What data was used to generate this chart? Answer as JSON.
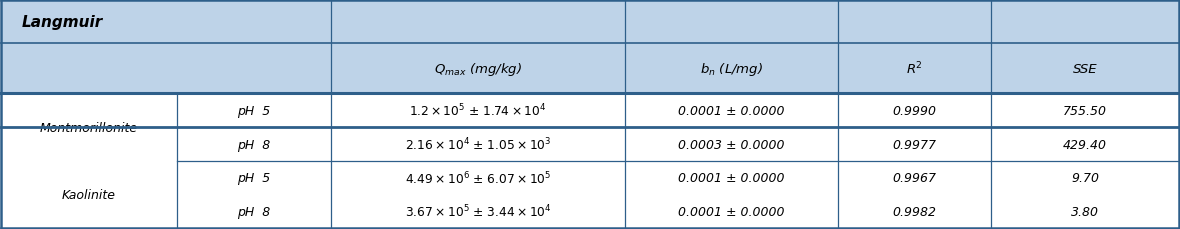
{
  "title": "Langmuir",
  "header_bg": "#bed3e8",
  "row_bg": "#ffffff",
  "dark_border": "#2e5f8a",
  "col_headers": [
    "$Q_{max}$ (mg/kg)",
    "$b_n$ (L/mg)",
    "R$^2$",
    "SSE"
  ],
  "rows": [
    {
      "mineral": "Montmorillonite",
      "pH": "pH  5",
      "Qmax": "$1.2\\times10^{5}$ ± $1.74\\times10^{4}$",
      "bn": "0.0001 ± 0.0000",
      "R2": "0.9990",
      "SSE": "755.50"
    },
    {
      "mineral": "Montmorillonite",
      "pH": "pH  8",
      "Qmax": "$2.16\\times10^{4}$ ± $1.05\\times10^{3}$",
      "bn": "0.0003 ± 0.0000",
      "R2": "0.9977",
      "SSE": "429.40"
    },
    {
      "mineral": "Kaolinite",
      "pH": "pH  5",
      "Qmax": "$4.49\\times10^{6}$ ± $6.07\\times10^{5}$",
      "bn": "0.0001 ± 0.0000",
      "R2": "0.9967",
      "SSE": "9.70"
    },
    {
      "mineral": "Kaolinite",
      "pH": "pH  8",
      "Qmax": "$3.67\\times10^{5}$ ± $3.44\\times10^{4}$",
      "bn": "0.0001 ± 0.0000",
      "R2": "0.9982",
      "SSE": "3.80"
    }
  ]
}
